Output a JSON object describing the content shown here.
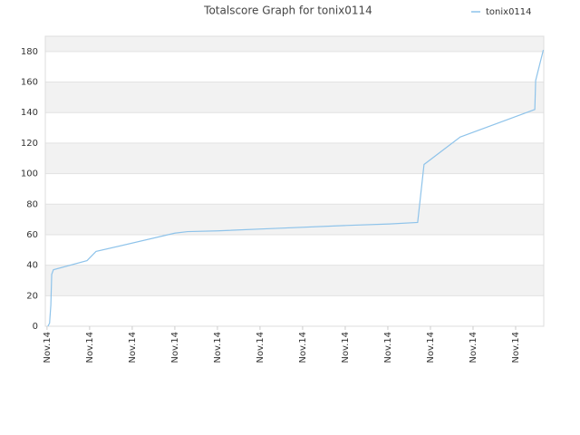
{
  "chart_data": {
    "type": "line",
    "title": "Totalscore Graph for tonix0114",
    "x": [
      0.02,
      0.06,
      0.09,
      0.11,
      0.15,
      0.94,
      1.15,
      3.0,
      3.3,
      4.0,
      5.28,
      6.98,
      8.04,
      8.7,
      8.85,
      9.7,
      11.45,
      11.47,
      11.65
    ],
    "series": [
      {
        "name": "tonix0114",
        "color": "#8ec3ea",
        "values": [
          0,
          2,
          14,
          34,
          37,
          43,
          49,
          61,
          62,
          62.5,
          64,
          66,
          67,
          68,
          106,
          124,
          142,
          161,
          181
        ]
      }
    ],
    "xlim": [
      -0.04,
      11.66
    ],
    "xticks": [
      {
        "value": 0,
        "label": "Nov.14"
      },
      {
        "value": 1,
        "label": "Nov.14"
      },
      {
        "value": 2,
        "label": "Nov.14"
      },
      {
        "value": 3,
        "label": "Nov.14"
      },
      {
        "value": 4,
        "label": "Nov.14"
      },
      {
        "value": 5,
        "label": "Nov.14"
      },
      {
        "value": 6,
        "label": "Nov.14"
      },
      {
        "value": 7,
        "label": "Nov.14"
      },
      {
        "value": 8,
        "label": "Nov.14"
      },
      {
        "value": 9,
        "label": "Nov.14"
      },
      {
        "value": 10,
        "label": "Nov.14"
      },
      {
        "value": 11,
        "label": "Nov.14"
      }
    ],
    "ylim": [
      0,
      190
    ],
    "yticks": [
      0,
      20,
      40,
      60,
      80,
      100,
      120,
      140,
      160,
      180
    ],
    "grid": true,
    "legend": "top-right"
  }
}
